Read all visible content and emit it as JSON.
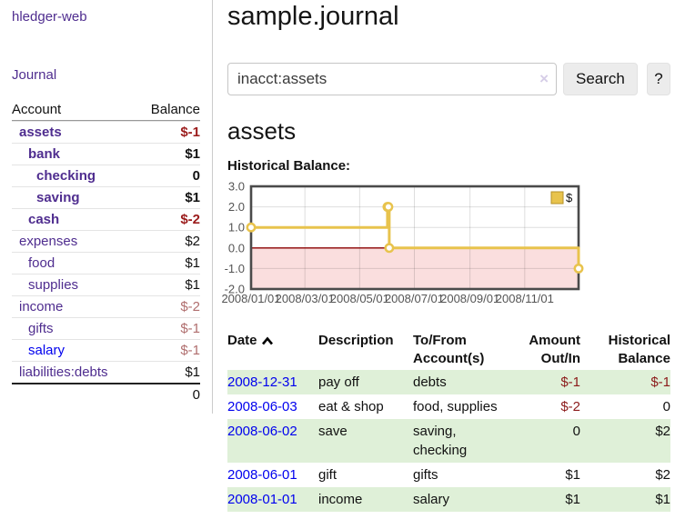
{
  "app": {
    "brand": "hledger-web"
  },
  "sidebar": {
    "nav": {
      "journal_label": "Journal"
    },
    "table": {
      "headers": [
        "Account",
        "Balance"
      ],
      "rows": [
        {
          "account": "assets",
          "balance": "$-1",
          "indent": 1,
          "bold": true,
          "neg": "strong",
          "link": "purple"
        },
        {
          "account": "bank",
          "balance": "$1",
          "indent": 2,
          "bold": true,
          "neg": "none",
          "link": "purple"
        },
        {
          "account": "checking",
          "balance": "0",
          "indent": 3,
          "bold": true,
          "neg": "none",
          "link": "purple"
        },
        {
          "account": "saving",
          "balance": "$1",
          "indent": 3,
          "bold": true,
          "neg": "none",
          "link": "purple"
        },
        {
          "account": "cash",
          "balance": "$-2",
          "indent": 2,
          "bold": true,
          "neg": "strong",
          "link": "purple"
        },
        {
          "account": "expenses",
          "balance": "$2",
          "indent": 1,
          "bold": false,
          "neg": "none",
          "link": "purple"
        },
        {
          "account": "food",
          "balance": "$1",
          "indent": 2,
          "bold": false,
          "neg": "none",
          "link": "purple"
        },
        {
          "account": "supplies",
          "balance": "$1",
          "indent": 2,
          "bold": false,
          "neg": "none",
          "link": "purple"
        },
        {
          "account": "income",
          "balance": "$-2",
          "indent": 1,
          "bold": false,
          "neg": "soft",
          "link": "purple"
        },
        {
          "account": "gifts",
          "balance": "$-1",
          "indent": 2,
          "bold": false,
          "neg": "soft",
          "link": "purple"
        },
        {
          "account": "salary",
          "balance": "$-1",
          "indent": 2,
          "bold": false,
          "neg": "soft",
          "link": "blue"
        },
        {
          "account": "liabilities:debts",
          "balance": "$1",
          "indent": 1,
          "bold": false,
          "neg": "none",
          "link": "purple"
        }
      ],
      "total": "0"
    }
  },
  "header": {
    "title": "sample.journal"
  },
  "search": {
    "value": "inacct:assets",
    "clear_icon": "×",
    "button_label": "Search",
    "help_label": "?"
  },
  "account_page": {
    "heading": "assets",
    "chart_label": "Historical Balance:"
  },
  "chart_data": {
    "type": "line",
    "step": "after",
    "series": [
      {
        "name": "$",
        "color": "#e8c34d",
        "points": [
          [
            "2008-01-01",
            1
          ],
          [
            "2008-06-01",
            2
          ],
          [
            "2008-06-02",
            2
          ],
          [
            "2008-06-03",
            0
          ],
          [
            "2008-12-31",
            -1
          ]
        ]
      }
    ],
    "x_range": [
      "2008-01-01",
      "2008-12-31"
    ],
    "ylim": [
      -2,
      3
    ],
    "y_ticks": [
      3.0,
      2.0,
      1.0,
      0.0,
      -1.0,
      -2.0
    ],
    "x_ticks": [
      {
        "date": "2008-01-01",
        "label": "2008/01/01"
      },
      {
        "date": "2008-03-01",
        "label": "2008/03/01"
      },
      {
        "date": "2008-05-01",
        "label": "2008/05/01"
      },
      {
        "date": "2008-07-01",
        "label": "2008/07/01"
      },
      {
        "date": "2008-09-01",
        "label": "2008/09/01"
      },
      {
        "date": "2008-11-01",
        "label": "2008/11/01"
      }
    ],
    "legend": {
      "position": "top-right",
      "label": "$"
    },
    "grid": true,
    "colors": {
      "negative_region": "#fadede",
      "zero_line": "#8b0000",
      "border": "#4a4a4a",
      "tick_label": "#545454"
    }
  },
  "register": {
    "columns": [
      "Date",
      "Description",
      "To/From Account(s)",
      "Amount Out/In",
      "Historical Balance"
    ],
    "sort": {
      "column": "Date",
      "direction": "asc"
    },
    "rows": [
      {
        "date": "2008-12-31",
        "description": "pay off",
        "accounts": "debts",
        "amount": "$-1",
        "amount_neg": true,
        "balance": "$-1",
        "balance_neg": true
      },
      {
        "date": "2008-06-03",
        "description": "eat & shop",
        "accounts": "food, supplies",
        "amount": "$-2",
        "amount_neg": true,
        "balance": "0",
        "balance_neg": false
      },
      {
        "date": "2008-06-02",
        "description": "save",
        "accounts": "saving, checking",
        "amount": "0",
        "amount_neg": false,
        "balance": "$2",
        "balance_neg": false
      },
      {
        "date": "2008-06-01",
        "description": "gift",
        "accounts": "gifts",
        "amount": "$1",
        "amount_neg": false,
        "balance": "$2",
        "balance_neg": false
      },
      {
        "date": "2008-01-01",
        "description": "income",
        "accounts": "salary",
        "amount": "$1",
        "amount_neg": false,
        "balance": "$1",
        "balance_neg": false
      }
    ]
  },
  "colors": {
    "link_purple": "#4f2d8f",
    "link_blue": "#0000ee",
    "negative_strong": "#9b1c1c",
    "negative_table": "#8b1a1a",
    "negative_soft": "#b06e6e",
    "stripe_green": "#dff0d8",
    "chart_gold": "#e8c34d"
  }
}
